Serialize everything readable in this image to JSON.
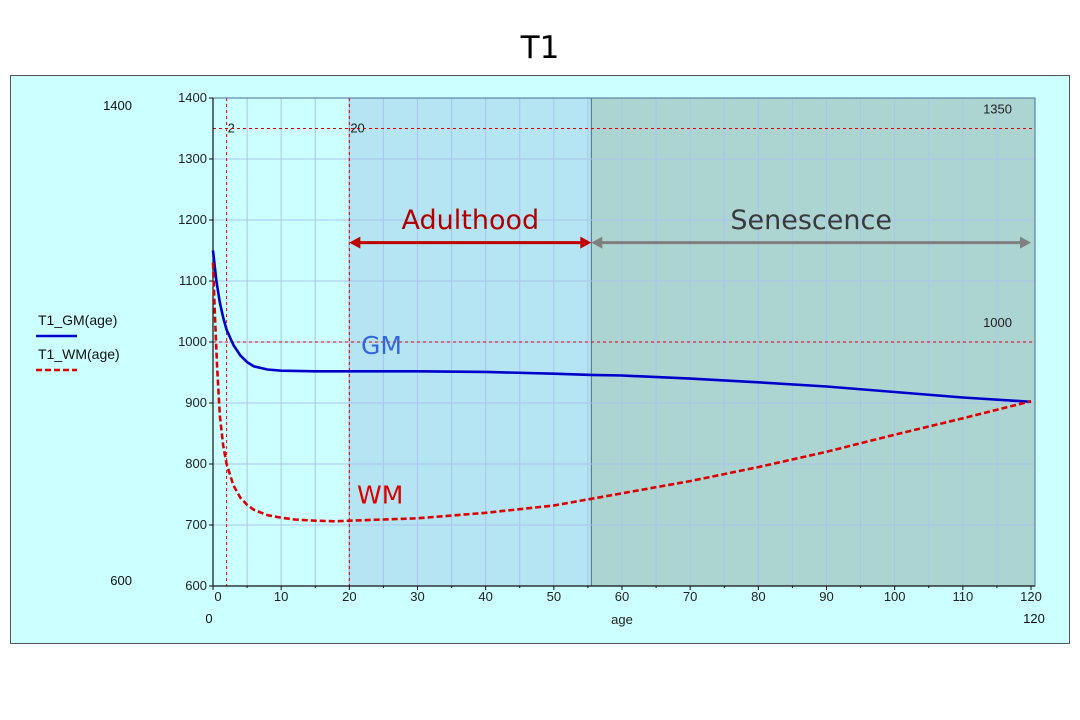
{
  "title": "T1",
  "chart_data": {
    "type": "line",
    "title": "T1",
    "xlabel": "age",
    "ylabel": "",
    "xlim": [
      0,
      120
    ],
    "ylim": [
      600,
      1400
    ],
    "x_ticks": [
      0,
      10,
      20,
      30,
      40,
      50,
      60,
      70,
      80,
      90,
      100,
      110,
      120
    ],
    "y_ticks": [
      600,
      700,
      800,
      900,
      1000,
      1100,
      1200,
      1300,
      1400
    ],
    "grid": true,
    "legend_position": "left",
    "range_labels": {
      "xmin": "0",
      "xmax": "120",
      "ymin": "600",
      "ymax": "1400"
    },
    "series": [
      {
        "name": "T1_GM(age)",
        "label": "GM",
        "color": "#0000cc",
        "style": "solid",
        "x": [
          0,
          0.5,
          1,
          1.5,
          2,
          3,
          4,
          5,
          6,
          8,
          10,
          15,
          20,
          30,
          40,
          50,
          55.5,
          60,
          70,
          80,
          90,
          100,
          110,
          120
        ],
        "y": [
          1150,
          1100,
          1065,
          1040,
          1020,
          995,
          978,
          967,
          960,
          955,
          953,
          952,
          952,
          952,
          951,
          948,
          946,
          945,
          940,
          934,
          927,
          918,
          909,
          902
        ]
      },
      {
        "name": "T1_WM(age)",
        "label": "WM",
        "color": "#dd0000",
        "style": "dashed",
        "x": [
          0,
          0.3,
          0.6,
          1,
          1.5,
          2,
          3,
          4,
          5,
          6,
          8,
          10,
          12,
          15,
          18,
          20,
          25,
          30,
          40,
          50,
          55.5,
          60,
          70,
          80,
          90,
          100,
          110,
          120
        ],
        "y": [
          1130,
          1040,
          960,
          880,
          830,
          800,
          765,
          745,
          733,
          725,
          716,
          712,
          709,
          707,
          706,
          707,
          709,
          711,
          720,
          732,
          743,
          752,
          772,
          795,
          820,
          848,
          875,
          903
        ]
      }
    ],
    "reference_lines": {
      "vertical": [
        {
          "x": 2,
          "label": "2"
        },
        {
          "x": 20,
          "label": "20"
        }
      ],
      "horizontal": [
        {
          "y": 1350,
          "label": "1350"
        },
        {
          "y": 1000,
          "label": "1000"
        }
      ]
    },
    "regions": [
      {
        "label": "Adulthood",
        "x_start": 20,
        "x_end": 55.5,
        "fill": "#b5e4f2",
        "label_color": "#b00000",
        "arrow_color": "#c00000"
      },
      {
        "label": "Senescence",
        "x_start": 55.5,
        "x_end": 120,
        "fill": "#acd5d2",
        "label_color": "#3a3a3a",
        "arrow_color": "#7f7f7f"
      }
    ],
    "colors": {
      "panel_background": "#ccffff",
      "grid": "#aac4ee",
      "reference_line": "#dd0000"
    }
  }
}
